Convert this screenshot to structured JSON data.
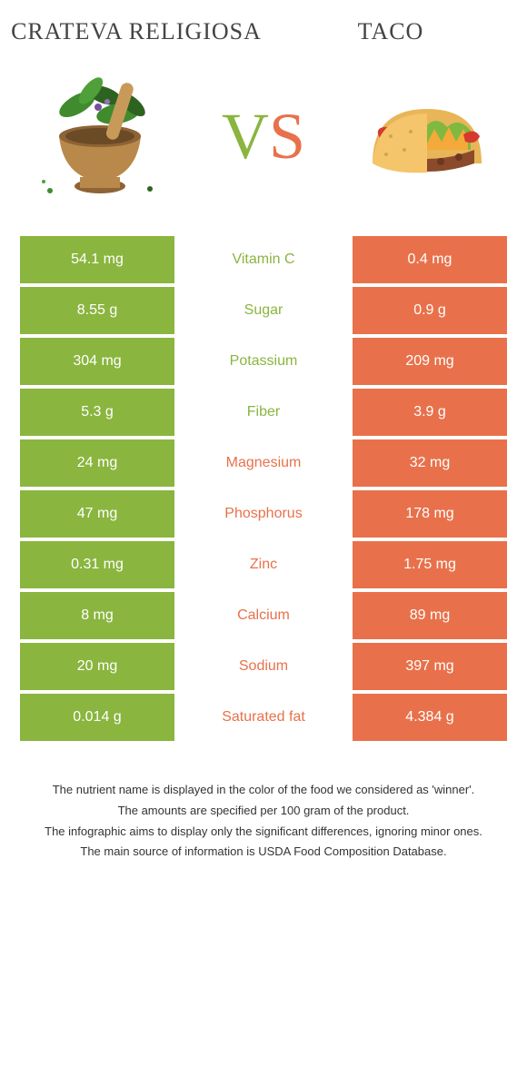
{
  "colors": {
    "left": "#8ab53f",
    "right": "#e8714b",
    "leftDark": "#6f9a2f",
    "rightDark": "#d45a34",
    "tacoShell": "#f5c56b",
    "tacoMeat": "#8b4a2b",
    "tacoLettuce": "#7fb93f",
    "tacoCheese": "#f4a93b",
    "tacoTomato": "#d43b2e",
    "mortarWood": "#b8894a",
    "mortarWoodDark": "#8e6335",
    "leafGreen": "#3f8b2e",
    "leafDark": "#2d6320"
  },
  "header": {
    "left": "Crateva religiosa",
    "right": "Taco",
    "vs_v": "V",
    "vs_s": "S"
  },
  "rows": [
    {
      "left": "54.1 mg",
      "mid": "Vitamin C",
      "right": "0.4 mg",
      "winner": "left"
    },
    {
      "left": "8.55 g",
      "mid": "Sugar",
      "right": "0.9 g",
      "winner": "left"
    },
    {
      "left": "304 mg",
      "mid": "Potassium",
      "right": "209 mg",
      "winner": "left"
    },
    {
      "left": "5.3 g",
      "mid": "Fiber",
      "right": "3.9 g",
      "winner": "left"
    },
    {
      "left": "24 mg",
      "mid": "Magnesium",
      "right": "32 mg",
      "winner": "right"
    },
    {
      "left": "47 mg",
      "mid": "Phosphorus",
      "right": "178 mg",
      "winner": "right"
    },
    {
      "left": "0.31 mg",
      "mid": "Zinc",
      "right": "1.75 mg",
      "winner": "right"
    },
    {
      "left": "8 mg",
      "mid": "Calcium",
      "right": "89 mg",
      "winner": "right"
    },
    {
      "left": "20 mg",
      "mid": "Sodium",
      "right": "397 mg",
      "winner": "right"
    },
    {
      "left": "0.014 g",
      "mid": "Saturated fat",
      "right": "4.384 g",
      "winner": "right"
    }
  ],
  "footer": {
    "l1": "The nutrient name is displayed in the color of the food we considered as 'winner'.",
    "l2": "The amounts are specified per 100 gram of the product.",
    "l3": "The infographic aims to display only the significant differences, ignoring minor ones.",
    "l4": "The main source of information is USDA Food Composition Database."
  }
}
